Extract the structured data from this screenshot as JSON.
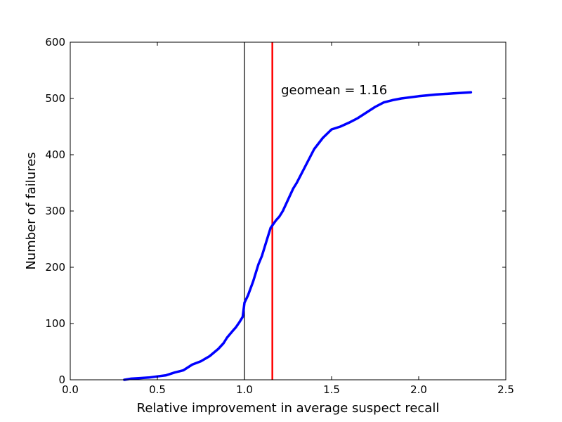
{
  "chart_data": {
    "type": "line",
    "title": "",
    "xlabel": "Relative improvement in average suspect recall",
    "ylabel": "Number of failures",
    "xlim": [
      0.0,
      2.5
    ],
    "ylim": [
      0,
      600
    ],
    "xticks": [
      0.0,
      0.5,
      1.0,
      1.5,
      2.0,
      2.5
    ],
    "xtick_labels": [
      "0.0",
      "0.5",
      "1.0",
      "1.5",
      "2.0",
      "2.5"
    ],
    "yticks": [
      0,
      100,
      200,
      300,
      400,
      500,
      600
    ],
    "ytick_labels": [
      "0",
      "100",
      "200",
      "300",
      "400",
      "500",
      "600"
    ],
    "grid": false,
    "series": [
      {
        "color": "#0000ff",
        "x": [
          0.31,
          0.35,
          0.4,
          0.45,
          0.5,
          0.55,
          0.6,
          0.65,
          0.68,
          0.7,
          0.75,
          0.8,
          0.85,
          0.88,
          0.9,
          0.93,
          0.95,
          0.97,
          0.99,
          1.0,
          1.02,
          1.05,
          1.08,
          1.1,
          1.13,
          1.15,
          1.18,
          1.2,
          1.22,
          1.25,
          1.28,
          1.3,
          1.35,
          1.4,
          1.45,
          1.5,
          1.55,
          1.6,
          1.65,
          1.7,
          1.75,
          1.8,
          1.85,
          1.9,
          2.0,
          2.1,
          2.2,
          2.3
        ],
        "y": [
          0,
          2,
          3,
          4,
          6,
          8,
          13,
          17,
          23,
          27,
          33,
          42,
          55,
          65,
          75,
          86,
          93,
          102,
          112,
          137,
          150,
          175,
          205,
          220,
          250,
          270,
          283,
          290,
          300,
          320,
          340,
          350,
          380,
          410,
          430,
          445,
          450,
          457,
          465,
          475,
          485,
          493,
          497,
          500,
          504,
          507,
          509,
          511
        ]
      }
    ],
    "vlines": [
      {
        "x": 1.0,
        "color": "#000000"
      },
      {
        "x": 1.16,
        "color": "#ff0000"
      }
    ],
    "annotations": [
      {
        "text": "geomean = 1.16",
        "x": 1.21,
        "y": 515
      }
    ]
  }
}
